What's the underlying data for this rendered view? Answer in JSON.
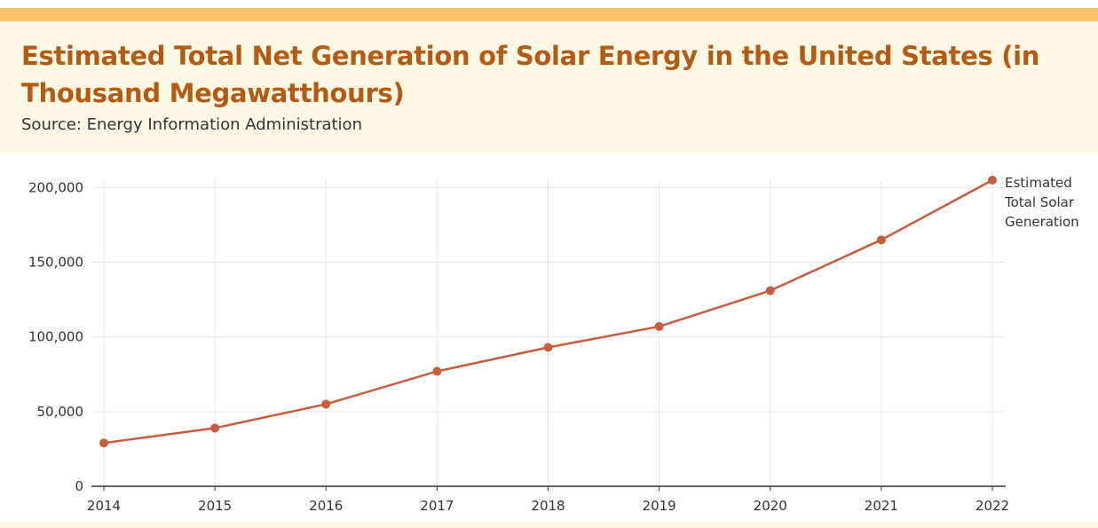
{
  "header": {
    "title": "Estimated Total Net Generation of Solar Energy in the United States (in Thousand Megawatthours)",
    "subtitle": "Source: Energy Information Administration"
  },
  "colors": {
    "accent_bar": "#fdc36d",
    "header_bg": "#fef9e4",
    "title": "#b45a13",
    "series": "#c95c3f",
    "grid": "#e6e6e6",
    "axis": "#333333"
  },
  "chart_data": {
    "type": "line",
    "title": "Estimated Total Net Generation of Solar Energy in the United States (in Thousand Megawatthours)",
    "xlabel": "",
    "ylabel": "",
    "x": [
      "2014",
      "2015",
      "2016",
      "2017",
      "2018",
      "2019",
      "2020",
      "2021",
      "2022"
    ],
    "series": [
      {
        "name": "Estimated Total Solar Generation",
        "name_lines": [
          "Estimated",
          "Total Solar",
          "Generation"
        ],
        "values": [
          29000,
          39000,
          55000,
          77000,
          93000,
          107000,
          131000,
          165000,
          205000
        ]
      }
    ],
    "yticks": [
      0,
      50000,
      100000,
      150000,
      200000
    ],
    "ytick_labels": [
      "0",
      "50,000",
      "100,000",
      "150,000",
      "200,000"
    ],
    "ylim": [
      0,
      205000
    ],
    "grid": true,
    "legend": "end-of-line label, right"
  }
}
